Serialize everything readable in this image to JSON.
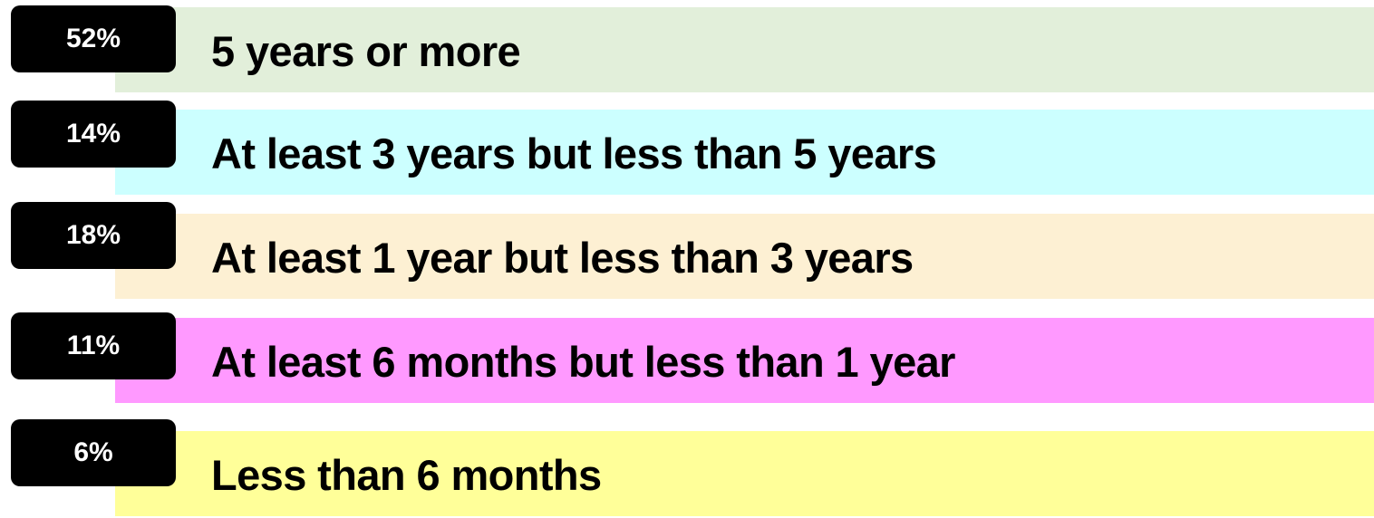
{
  "items": [
    {
      "percent": "52%",
      "label": "5 years or more",
      "color": "#e2efda"
    },
    {
      "percent": "14%",
      "label": "At least 3 years but less than 5 years",
      "color": "#ccffff"
    },
    {
      "percent": "18%",
      "label": "At least 1 year but less than 3 years",
      "color": "#fdf0d3"
    },
    {
      "percent": "11%",
      "label": "At least 6 months but less than 1 year",
      "color": "#ff99ff"
    },
    {
      "percent": "6%",
      "label": "Less than 6 months",
      "color": "#ffff99"
    }
  ]
}
